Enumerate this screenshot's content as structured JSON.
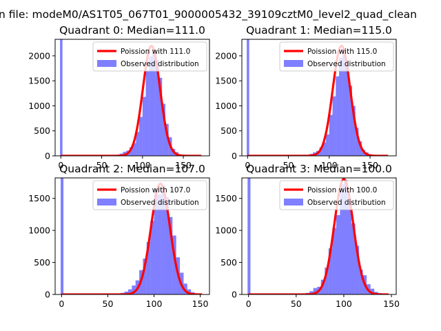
{
  "figure": {
    "suptitle": "n file: modeM0/AS1T05_067T01_9000005432_39109cztM0_level2_quad_clean"
  },
  "chart_data": [
    {
      "type": "bar",
      "title": "Quadrant 0: Median=111.0",
      "median": 111.0,
      "xlim": [
        -7,
        182
      ],
      "ylim": [
        0,
        2330
      ],
      "xticks": [
        0,
        50,
        100,
        150
      ],
      "yticks": [
        0,
        500,
        1000,
        1500,
        2000
      ],
      "legend": {
        "position": "top-right",
        "curve_label": "Poission with 111.0",
        "hist_label": "Observed distribution"
      },
      "zero_bar": {
        "x0": -1,
        "x1": 2,
        "value": 2330
      },
      "bin_width": 4,
      "hist_bins": [
        {
          "x": 60,
          "v": 5
        },
        {
          "x": 64,
          "v": 10
        },
        {
          "x": 68,
          "v": 25
        },
        {
          "x": 72,
          "v": 45
        },
        {
          "x": 76,
          "v": 80
        },
        {
          "x": 80,
          "v": 105
        },
        {
          "x": 84,
          "v": 170
        },
        {
          "x": 88,
          "v": 255
        },
        {
          "x": 92,
          "v": 480
        },
        {
          "x": 96,
          "v": 780
        },
        {
          "x": 100,
          "v": 1180
        },
        {
          "x": 104,
          "v": 1700
        },
        {
          "x": 108,
          "v": 1990
        },
        {
          "x": 112,
          "v": 2080
        },
        {
          "x": 116,
          "v": 1920
        },
        {
          "x": 120,
          "v": 1560
        },
        {
          "x": 124,
          "v": 1040
        },
        {
          "x": 128,
          "v": 640
        },
        {
          "x": 132,
          "v": 370
        },
        {
          "x": 136,
          "v": 140
        },
        {
          "x": 140,
          "v": 75
        },
        {
          "x": 144,
          "v": 30
        },
        {
          "x": 148,
          "v": 15
        },
        {
          "x": 152,
          "v": 8
        }
      ],
      "curve_peak": 2200,
      "curve_sigma": 10.6,
      "curve_x_range": [
        0,
        172
      ]
    },
    {
      "type": "bar",
      "title": "Quadrant 1: Median=115.0",
      "median": 115.0,
      "xlim": [
        -7,
        182
      ],
      "ylim": [
        0,
        2330
      ],
      "xticks": [
        0,
        50,
        100,
        150
      ],
      "yticks": [
        0,
        500,
        1000,
        1500,
        2000
      ],
      "legend": {
        "position": "top-right",
        "curve_label": "Poission with 115.0",
        "hist_label": "Observed distribution"
      },
      "zero_bar": {
        "x0": -1,
        "x1": 2,
        "value": 2330
      },
      "bin_width": 4,
      "hist_bins": [
        {
          "x": 64,
          "v": 5
        },
        {
          "x": 68,
          "v": 10
        },
        {
          "x": 72,
          "v": 20
        },
        {
          "x": 76,
          "v": 40
        },
        {
          "x": 80,
          "v": 70
        },
        {
          "x": 84,
          "v": 100
        },
        {
          "x": 88,
          "v": 170
        },
        {
          "x": 92,
          "v": 270
        },
        {
          "x": 96,
          "v": 430
        },
        {
          "x": 100,
          "v": 820
        },
        {
          "x": 104,
          "v": 1190
        },
        {
          "x": 108,
          "v": 1590
        },
        {
          "x": 112,
          "v": 1960
        },
        {
          "x": 116,
          "v": 2150
        },
        {
          "x": 120,
          "v": 1820
        },
        {
          "x": 124,
          "v": 1400
        },
        {
          "x": 128,
          "v": 1000
        },
        {
          "x": 132,
          "v": 560
        },
        {
          "x": 136,
          "v": 290
        },
        {
          "x": 140,
          "v": 120
        },
        {
          "x": 144,
          "v": 70
        },
        {
          "x": 148,
          "v": 30
        },
        {
          "x": 152,
          "v": 15
        },
        {
          "x": 156,
          "v": 8
        }
      ],
      "curve_peak": 2200,
      "curve_sigma": 10.7,
      "curve_x_range": [
        0,
        172
      ]
    },
    {
      "type": "bar",
      "title": "Quadrant 2: Median=107.0",
      "median": 107.0,
      "xlim": [
        -7,
        160
      ],
      "ylim": [
        0,
        1820
      ],
      "xticks": [
        0,
        50,
        100,
        150
      ],
      "yticks": [
        0,
        500,
        1000,
        1500
      ],
      "legend": {
        "position": "top-right",
        "curve_label": "Poission with 107.0",
        "hist_label": "Observed distribution"
      },
      "zero_bar": {
        "x0": -1,
        "x1": 2,
        "value": 1820
      },
      "bin_width": 4,
      "hist_bins": [
        {
          "x": 52,
          "v": 5
        },
        {
          "x": 56,
          "v": 8
        },
        {
          "x": 60,
          "v": 15
        },
        {
          "x": 64,
          "v": 25
        },
        {
          "x": 68,
          "v": 45
        },
        {
          "x": 72,
          "v": 80
        },
        {
          "x": 76,
          "v": 140
        },
        {
          "x": 80,
          "v": 220
        },
        {
          "x": 84,
          "v": 380
        },
        {
          "x": 88,
          "v": 560
        },
        {
          "x": 92,
          "v": 820
        },
        {
          "x": 96,
          "v": 1150
        },
        {
          "x": 100,
          "v": 1640
        },
        {
          "x": 104,
          "v": 1560
        },
        {
          "x": 108,
          "v": 1700
        },
        {
          "x": 112,
          "v": 1520
        },
        {
          "x": 116,
          "v": 1210
        },
        {
          "x": 120,
          "v": 920
        },
        {
          "x": 124,
          "v": 580
        },
        {
          "x": 128,
          "v": 340
        },
        {
          "x": 132,
          "v": 170
        },
        {
          "x": 136,
          "v": 80
        },
        {
          "x": 140,
          "v": 35
        },
        {
          "x": 144,
          "v": 15
        }
      ],
      "curve_peak": 1730,
      "curve_sigma": 10.3,
      "curve_x_range": [
        0,
        152
      ]
    },
    {
      "type": "bar",
      "title": "Quadrant 3: Median=100.0",
      "median": 100.0,
      "xlim": [
        -7,
        155
      ],
      "ylim": [
        0,
        1820
      ],
      "xticks": [
        0,
        50,
        100,
        150
      ],
      "yticks": [
        0,
        500,
        1000,
        1500
      ],
      "legend": {
        "position": "top-right",
        "curve_label": "Poission with 100.0",
        "hist_label": "Observed distribution"
      },
      "zero_bar": {
        "x0": -1,
        "x1": 2,
        "value": 1820
      },
      "bin_width": 4,
      "hist_bins": [
        {
          "x": 48,
          "v": 5
        },
        {
          "x": 52,
          "v": 8
        },
        {
          "x": 56,
          "v": 15
        },
        {
          "x": 60,
          "v": 25
        },
        {
          "x": 64,
          "v": 50
        },
        {
          "x": 68,
          "v": 100
        },
        {
          "x": 72,
          "v": 120
        },
        {
          "x": 76,
          "v": 230
        },
        {
          "x": 80,
          "v": 420
        },
        {
          "x": 84,
          "v": 720
        },
        {
          "x": 88,
          "v": 1040
        },
        {
          "x": 92,
          "v": 1240
        },
        {
          "x": 96,
          "v": 1720
        },
        {
          "x": 100,
          "v": 1790
        },
        {
          "x": 104,
          "v": 1510
        },
        {
          "x": 108,
          "v": 1110
        },
        {
          "x": 112,
          "v": 760
        },
        {
          "x": 116,
          "v": 390
        },
        {
          "x": 120,
          "v": 300
        },
        {
          "x": 124,
          "v": 160
        },
        {
          "x": 128,
          "v": 90
        },
        {
          "x": 132,
          "v": 40
        },
        {
          "x": 136,
          "v": 20
        },
        {
          "x": 140,
          "v": 8
        }
      ],
      "curve_peak": 1800,
      "curve_sigma": 10.0,
      "curve_x_range": [
        0,
        147
      ]
    }
  ],
  "colors": {
    "hist": "#0000ff",
    "curve": "#ff0000",
    "axis": "#000000",
    "background": "#ffffff"
  }
}
